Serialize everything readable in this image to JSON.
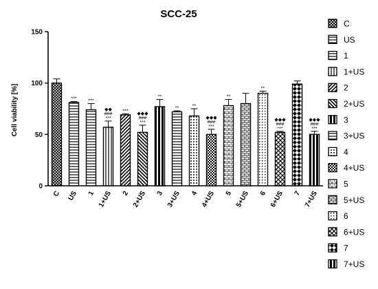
{
  "chart_data": {
    "type": "bar",
    "title": "SCC-25",
    "ylabel": "Cell viability [%]",
    "xlabel": "",
    "ylim": [
      0,
      150
    ],
    "yticks": [
      0,
      50,
      100,
      150
    ],
    "legend_position": "right",
    "categories": [
      "C",
      "US",
      "1",
      "1+US",
      "2",
      "2+US",
      "3",
      "3+US",
      "4",
      "4+US",
      "5",
      "5+US",
      "6",
      "6+US",
      "7",
      "7+US"
    ],
    "values": [
      100,
      81,
      74,
      57,
      69,
      52,
      77,
      72,
      68,
      50,
      78,
      80,
      90,
      52,
      99,
      50
    ],
    "errors": [
      4,
      1,
      6,
      6,
      1,
      7,
      7,
      1,
      7,
      5,
      6,
      10,
      2,
      1,
      3,
      3
    ],
    "annotations": [
      [],
      [
        "***"
      ],
      [
        "***"
      ],
      [
        "◆◆",
        "###",
        "***"
      ],
      [
        "***"
      ],
      [
        "◆◆◆",
        "###",
        "***"
      ],
      [
        "**"
      ],
      [
        "**"
      ],
      [
        "**"
      ],
      [
        "◆◆◆",
        "###",
        "***"
      ],
      [
        "**"
      ],
      [],
      [
        "**"
      ],
      [
        "◆◆◆",
        "###",
        "***"
      ],
      [],
      [
        "◆◆◆",
        "###",
        "***"
      ]
    ],
    "patterns": [
      "cross",
      "hstripe",
      "hstripe",
      "vstripe",
      "diag",
      "diagr",
      "vthick",
      "hstripe",
      "dots",
      "checker",
      "brick",
      "brick2",
      "dotgrid",
      "weave",
      "diamond",
      "vthick"
    ]
  }
}
